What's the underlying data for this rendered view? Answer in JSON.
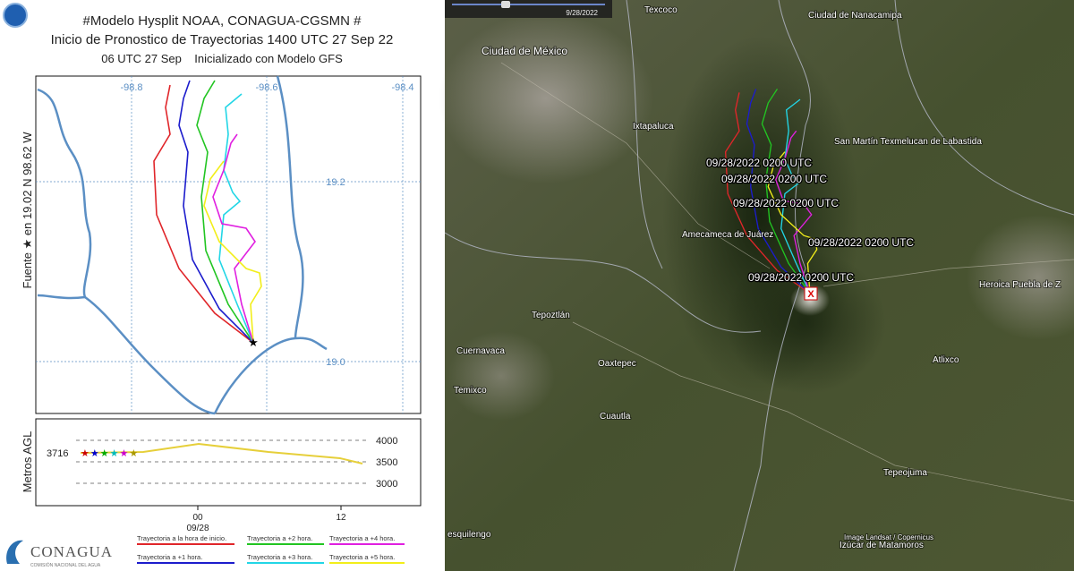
{
  "hysplit": {
    "title": "#Modelo Hysplit NOAA, CONAGUA-CGSMN #",
    "subtitle": "Inicio de Pronostico de Trayectorias 1400 UTC 27 Sep 22",
    "init_line": "06 UTC 27 Sep    Inicializado con Modelo GFS",
    "source_label": "Fuente ★ en 19.02 N 98.62 W",
    "lon_labels": [
      "-98.8",
      "-98.6",
      "-98.4"
    ],
    "lat_labels": [
      "19.2",
      "19.0"
    ],
    "height_axis_label": "Metros AGL",
    "height_labels": [
      "4000",
      "3500",
      "3000"
    ],
    "start_height": "3716",
    "time_labels": [
      "00",
      "12"
    ],
    "date_label": "09/28",
    "legend": [
      "Trayectoria a la hora de inicio.",
      "Trayectoria a +1 hora.",
      "Trayectoria a +2 hora.",
      "Trayectoria a +3 hora.",
      "Trayectoria a +4 hora.",
      "Trayectoria a +5 hora."
    ],
    "logo": "CONAGUA",
    "logo_sub": "COMISIÓN NACIONAL DEL AGUA"
  },
  "map": {
    "time_slider_label": "9/28/2022",
    "places": [
      "Texcoco",
      "Ciudad de Nanacamipa",
      "Ciudad de México",
      "Ixtapaluca",
      "San Martín Texmelucan de Labastida",
      "Amecameca de Juárez",
      "Tepoztlán",
      "Cuernavaca",
      "Oaxtepec",
      "Temixco",
      "Cuautla",
      "Heroica Puebla de Z",
      "Atlixco",
      "Tepeojuma",
      "esquilengo",
      "Izúcar de Matamoros"
    ],
    "trajectory_labels": [
      "09/28/2022 0200 UTC",
      "09/28/2022 0200 UTC",
      "09/28/2022 0200 UTC",
      "09/28/2022 0200 UTC",
      "09/28/2022 0200 UTC"
    ],
    "source_marker": "X",
    "attribution": "Image Landsat / Copernicus"
  }
}
